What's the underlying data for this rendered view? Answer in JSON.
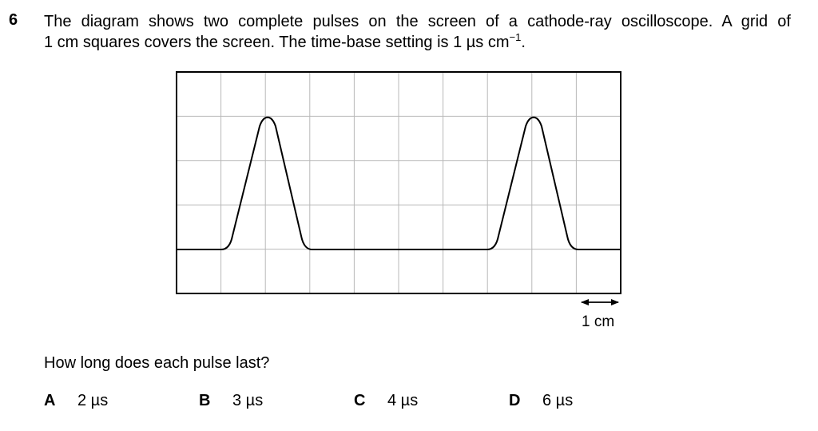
{
  "question": {
    "number": "6",
    "stem_line1": "The diagram shows two complete pulses on the screen of a cathode-ray oscilloscope. A grid of",
    "stem_line2_pre": "1 cm squares covers the screen. The time-base setting is 1 µs cm",
    "stem_line2_sup": "−1",
    "stem_line2_post": ".",
    "prompt": "How long does each pulse last?"
  },
  "diagram": {
    "grid_columns": 10,
    "grid_rows": 5,
    "scale_label": "1 cm",
    "trace_colour": "#000000",
    "grid_colour": "#b8b8b8"
  },
  "options": [
    {
      "letter": "A",
      "text": "2 µs"
    },
    {
      "letter": "B",
      "text": "3 µs"
    },
    {
      "letter": "C",
      "text": "4 µs"
    },
    {
      "letter": "D",
      "text": "6 µs"
    }
  ]
}
